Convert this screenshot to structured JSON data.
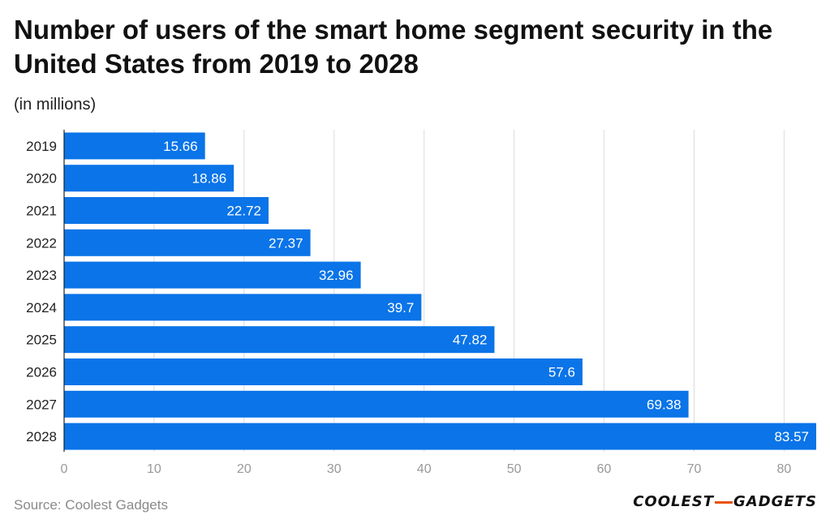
{
  "title": "Number of users of the smart home segment security in the United States from 2019 to 2028",
  "subtitle": "(in millions)",
  "source": "Source: Coolest Gadgets",
  "logo": {
    "left": "COOLEST",
    "right": "GADGETS"
  },
  "colors": {
    "bar": "#0a74e8",
    "grid": "#dcdcdc",
    "axis_text": "#999999",
    "label_text": "#222222",
    "logo_accent": "#e8520c"
  },
  "chart_data": {
    "type": "bar",
    "orientation": "horizontal",
    "title": "Number of users of the smart home segment security in the United States from 2019 to 2028",
    "ylabel": "",
    "xlabel": "",
    "unit": "(in millions)",
    "categories": [
      "2019",
      "2020",
      "2021",
      "2022",
      "2023",
      "2024",
      "2025",
      "2026",
      "2027",
      "2028"
    ],
    "values": [
      15.66,
      18.86,
      22.72,
      27.37,
      32.96,
      39.7,
      47.82,
      57.6,
      69.38,
      83.57
    ],
    "value_labels": [
      "15.66",
      "18.86",
      "22.72",
      "27.37",
      "32.96",
      "39.7",
      "47.82",
      "57.6",
      "69.38",
      "83.57"
    ],
    "xlim": [
      0,
      83.57
    ],
    "xticks": [
      0,
      10,
      20,
      30,
      40,
      50,
      60,
      70,
      80
    ],
    "grid": true
  }
}
